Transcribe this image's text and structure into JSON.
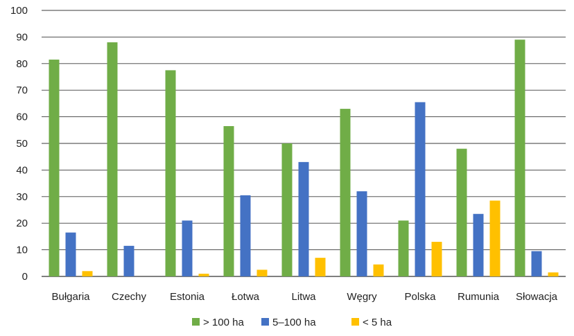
{
  "chart_data": {
    "type": "bar",
    "categories": [
      "Bułgaria",
      "Czechy",
      "Estonia",
      "Łotwa",
      "Litwa",
      "Węgry",
      "Polska",
      "Rumunia",
      "Słowacja"
    ],
    "series": [
      {
        "name": "> 100 ha",
        "color": "#70ad47",
        "values": [
          81.5,
          88,
          77.5,
          56.5,
          50,
          63,
          21,
          48,
          89
        ]
      },
      {
        "name": "5–100 ha",
        "color": "#4472c4",
        "values": [
          16.5,
          11.5,
          21,
          30.5,
          43,
          32,
          65.5,
          23.5,
          9.5
        ]
      },
      {
        "name": "< 5 ha",
        "color": "#ffc000",
        "values": [
          2,
          0,
          1,
          2.5,
          7,
          4.5,
          13,
          28.5,
          1.5
        ]
      }
    ],
    "ylim": [
      0,
      100
    ],
    "yticks": [
      0,
      10,
      20,
      30,
      40,
      50,
      60,
      70,
      80,
      90,
      100
    ],
    "grid": true,
    "legend_position": "bottom",
    "title": "",
    "xlabel": "",
    "ylabel": ""
  }
}
